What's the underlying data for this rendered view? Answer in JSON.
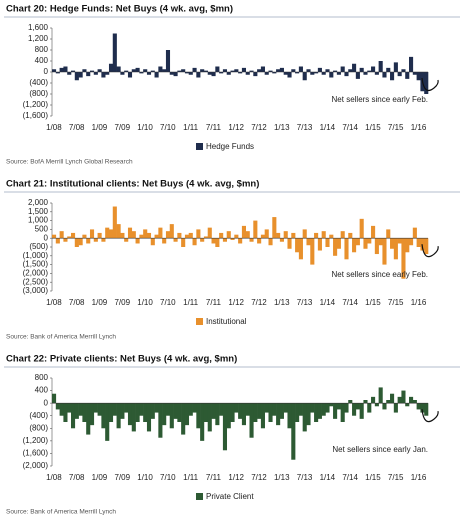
{
  "chart_data": [
    {
      "type": "bar",
      "title": "Chart 20: Hedge Funds: Net Buys (4 wk. avg, $mn)",
      "source": "Source: BofA Merrill Lynch Global Research",
      "annotation": "Net sellers since early Feb.",
      "legend": "bottom",
      "categories": [
        "1/08",
        null,
        null,
        null,
        null,
        null,
        "7/08",
        null,
        null,
        null,
        null,
        null,
        "1/09",
        null,
        null,
        null,
        null,
        null,
        "7/09",
        null,
        null,
        null,
        null,
        null,
        "1/10",
        null,
        null,
        null,
        null,
        null,
        "7/10",
        null,
        null,
        null,
        null,
        null,
        "1/11",
        null,
        null,
        null,
        null,
        null,
        "7/11",
        null,
        null,
        null,
        null,
        null,
        "1/12",
        null,
        null,
        null,
        null,
        null,
        "7/12",
        null,
        null,
        null,
        null,
        null,
        "1/13",
        null,
        null,
        null,
        null,
        null,
        "7/13",
        null,
        null,
        null,
        null,
        null,
        "1/14",
        null,
        null,
        null,
        null,
        null,
        "7/14",
        null,
        null,
        null,
        null,
        null,
        "1/15",
        null,
        null,
        null,
        null,
        null,
        "7/15",
        null,
        null,
        null,
        null,
        null,
        "1/16",
        null,
        null
      ],
      "series": [
        {
          "name": "Hedge Funds",
          "color": "#1f2d4d",
          "values": [
            100,
            -50,
            150,
            200,
            -100,
            50,
            -300,
            -200,
            100,
            -150,
            50,
            -100,
            100,
            -200,
            -100,
            300,
            1400,
            200,
            -100,
            50,
            -200,
            100,
            150,
            -50,
            100,
            -100,
            50,
            -200,
            200,
            100,
            800,
            -100,
            -150,
            50,
            100,
            -50,
            -100,
            150,
            -200,
            100,
            50,
            -100,
            -150,
            200,
            -50,
            100,
            -100,
            50,
            100,
            -50,
            150,
            -100,
            50,
            -150,
            100,
            200,
            -100,
            50,
            -50,
            100,
            150,
            -100,
            -200,
            100,
            -50,
            200,
            -300,
            100,
            -100,
            -50,
            150,
            -100,
            100,
            -200,
            50,
            -100,
            200,
            -150,
            100,
            300,
            -250,
            150,
            -100,
            50,
            200,
            -100,
            400,
            -200,
            150,
            -300,
            350,
            -150,
            100,
            -250,
            550,
            -100,
            -300,
            -700,
            -800
          ]
        }
      ],
      "ylim": [
        -1600,
        1600
      ],
      "yticks": [
        {
          "value": 1600,
          "label": "1,600"
        },
        {
          "value": 1200,
          "label": "1,200"
        },
        800,
        400,
        0,
        {
          "value": -400,
          "label": "(400)"
        },
        {
          "value": -800,
          "label": "(800)"
        },
        {
          "value": -1200,
          "label": "(1,200)"
        },
        {
          "value": -1600,
          "label": "(1,600)"
        }
      ]
    },
    {
      "type": "bar",
      "title": "Chart 21: Institutional clients: Net Buys (4 wk. avg, $mn)",
      "source": "Source: Bank of America Merrill Lynch",
      "annotation": "Net sellers since early Feb.",
      "legend": "bottom",
      "categories": [
        "1/08",
        null,
        null,
        null,
        null,
        null,
        "7/08",
        null,
        null,
        null,
        null,
        null,
        "1/09",
        null,
        null,
        null,
        null,
        null,
        "7/09",
        null,
        null,
        null,
        null,
        null,
        "1/10",
        null,
        null,
        null,
        null,
        null,
        "7/10",
        null,
        null,
        null,
        null,
        null,
        "1/11",
        null,
        null,
        null,
        null,
        null,
        "7/11",
        null,
        null,
        null,
        null,
        null,
        "1/12",
        null,
        null,
        null,
        null,
        null,
        "7/12",
        null,
        null,
        null,
        null,
        null,
        "1/13",
        null,
        null,
        null,
        null,
        null,
        "7/13",
        null,
        null,
        null,
        null,
        null,
        "1/14",
        null,
        null,
        null,
        null,
        null,
        "7/14",
        null,
        null,
        null,
        null,
        null,
        "1/15",
        null,
        null,
        null,
        null,
        null,
        "7/15",
        null,
        null,
        null,
        null,
        null,
        "1/16",
        null,
        null
      ],
      "series": [
        {
          "name": "Institutional",
          "color": "#e8902c",
          "values": [
            200,
            -300,
            400,
            -200,
            100,
            300,
            -500,
            -400,
            200,
            -300,
            500,
            -200,
            300,
            -200,
            600,
            500,
            1800,
            800,
            300,
            -200,
            600,
            400,
            -300,
            200,
            500,
            300,
            -400,
            200,
            600,
            -300,
            400,
            800,
            -200,
            300,
            -500,
            200,
            300,
            -400,
            500,
            -200,
            100,
            600,
            -300,
            -500,
            300,
            -200,
            400,
            -100,
            200,
            -300,
            700,
            400,
            -200,
            1000,
            -300,
            200,
            500,
            -400,
            1200,
            300,
            -200,
            400,
            -600,
            300,
            -800,
            -1200,
            500,
            -400,
            -1500,
            300,
            -700,
            400,
            -500,
            200,
            -1000,
            -600,
            400,
            -1200,
            300,
            -800,
            -400,
            1100,
            -600,
            -300,
            700,
            -900,
            -400,
            -1500,
            500,
            -600,
            -1200,
            -300,
            -2300,
            -800,
            -400,
            600,
            -500,
            -700,
            -900
          ]
        }
      ],
      "ylim": [
        -3000,
        2000
      ],
      "yticks": [
        {
          "value": 2000,
          "label": "2,000"
        },
        {
          "value": 1500,
          "label": "1,500"
        },
        {
          "value": 1000,
          "label": "1,000"
        },
        500,
        0,
        {
          "value": -500,
          "label": "(500)"
        },
        {
          "value": -1000,
          "label": "(1,000)"
        },
        {
          "value": -1500,
          "label": "(1,500)"
        },
        {
          "value": -2000,
          "label": "(2,000)"
        },
        {
          "value": -2500,
          "label": "(2,500)"
        },
        {
          "value": -3000,
          "label": "(3,000)"
        }
      ]
    },
    {
      "type": "bar",
      "title": "Chart 22: Private clients: Net Buys (4 wk. avg, $mn)",
      "source": "Source: Bank of America Merrill Lynch",
      "annotation": "Net sellers since early Jan.",
      "legend": "bottom",
      "categories": [
        "1/08",
        null,
        null,
        null,
        null,
        null,
        "7/08",
        null,
        null,
        null,
        null,
        null,
        "1/09",
        null,
        null,
        null,
        null,
        null,
        "7/09",
        null,
        null,
        null,
        null,
        null,
        "1/10",
        null,
        null,
        null,
        null,
        null,
        "7/10",
        null,
        null,
        null,
        null,
        null,
        "1/11",
        null,
        null,
        null,
        null,
        null,
        "7/11",
        null,
        null,
        null,
        null,
        null,
        "1/12",
        null,
        null,
        null,
        null,
        null,
        "7/12",
        null,
        null,
        null,
        null,
        null,
        "1/13",
        null,
        null,
        null,
        null,
        null,
        "7/13",
        null,
        null,
        null,
        null,
        null,
        "1/14",
        null,
        null,
        null,
        null,
        null,
        "7/14",
        null,
        null,
        null,
        null,
        null,
        "1/15",
        null,
        null,
        null,
        null,
        null,
        "7/15",
        null,
        null,
        null,
        null,
        null,
        "1/16",
        null,
        null
      ],
      "series": [
        {
          "name": "Private Client",
          "color": "#2d5a33",
          "values": [
            300,
            -200,
            -400,
            -600,
            -300,
            -800,
            -500,
            -400,
            -600,
            -1000,
            -700,
            -300,
            -400,
            -800,
            -1200,
            -600,
            -400,
            -800,
            -500,
            -300,
            -700,
            -900,
            -600,
            -400,
            -600,
            -900,
            -500,
            -300,
            -1100,
            -700,
            -400,
            -800,
            -500,
            -600,
            -1000,
            -700,
            -400,
            -300,
            -800,
            -1200,
            -600,
            -900,
            -500,
            -700,
            -400,
            -1500,
            -800,
            -600,
            -300,
            -500,
            -700,
            -400,
            -1100,
            -600,
            -500,
            -800,
            -300,
            -600,
            -400,
            -700,
            -500,
            -300,
            -800,
            -1800,
            -600,
            -400,
            -900,
            -700,
            -300,
            -600,
            -500,
            -400,
            -300,
            -100,
            -500,
            -200,
            -600,
            -300,
            100,
            -400,
            -200,
            -500,
            100,
            -300,
            200,
            -100,
            500,
            -200,
            100,
            300,
            -300,
            200,
            400,
            -100,
            200,
            100,
            -200,
            -300,
            -400
          ]
        }
      ],
      "ylim": [
        -2000,
        800
      ],
      "yticks": [
        800,
        400,
        0,
        {
          "value": -400,
          "label": "(400)"
        },
        {
          "value": -800,
          "label": "(800)"
        },
        {
          "value": -1200,
          "label": "(1,200)"
        },
        {
          "value": -1600,
          "label": "(1,600)"
        },
        {
          "value": -2000,
          "label": "(2,000)"
        }
      ]
    }
  ]
}
